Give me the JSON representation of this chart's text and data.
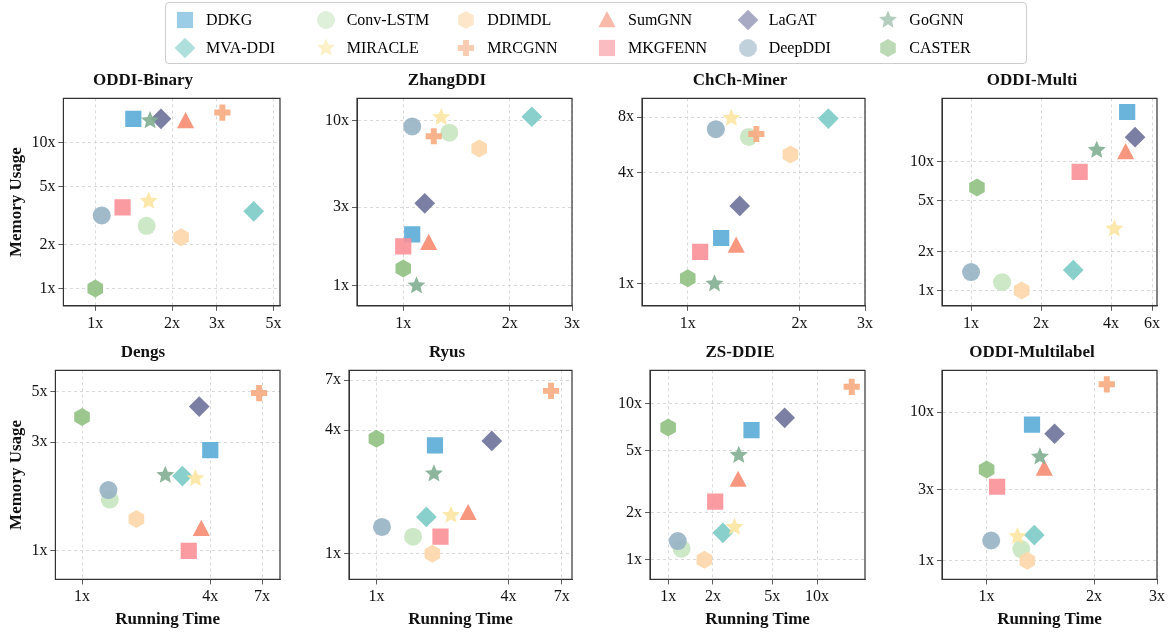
{
  "chart_data": [
    {
      "type": "scatter",
      "title": "ODDI-Binary",
      "ylabel": "Memory Usage",
      "log": "xy",
      "grid": true,
      "legend": "top",
      "xlim": [
        0.75,
        5.3
      ],
      "ylim": [
        0.76,
        20
      ],
      "xticks": [
        {
          "value": 1,
          "label": "1x"
        },
        {
          "value": 2,
          "label": "2x"
        },
        {
          "value": 3,
          "label": "3x"
        },
        {
          "value": 5,
          "label": "5x"
        }
      ],
      "yticks": [
        {
          "value": 1,
          "label": "1x"
        },
        {
          "value": 2,
          "label": "2x"
        },
        {
          "value": 5,
          "label": "5x"
        },
        {
          "value": 10,
          "label": "10x"
        }
      ],
      "series": [
        {
          "name": "DDKG",
          "color": "#5aabd6",
          "marker": "square",
          "x": [
            1.41
          ],
          "values": [
            14.5
          ]
        },
        {
          "name": "MVA-DDI",
          "color": "#7ccbc6",
          "marker": "diamond",
          "x": [
            4.18
          ],
          "values": [
            3.37
          ]
        },
        {
          "name": "Conv-LSTM",
          "color": "#c8e5c1",
          "marker": "circle",
          "x": [
            1.59
          ],
          "values": [
            2.68
          ]
        },
        {
          "name": "MIRACLE",
          "color": "#fde6a2",
          "marker": "star",
          "x": [
            1.62
          ],
          "values": [
            3.96
          ]
        },
        {
          "name": "DDIMDL",
          "color": "#fdd6a8",
          "x": [
            2.17
          ],
          "values": [
            2.24
          ]
        },
        {
          "name": "MRCGNN",
          "color": "#f7aa80",
          "marker": "cross",
          "x": [
            3.15
          ],
          "values": [
            16.0
          ]
        },
        {
          "name": "SumGNN",
          "color": "#f68c72",
          "marker": "triangle",
          "x": [
            2.26
          ],
          "values": [
            14.0
          ]
        },
        {
          "name": "MKGFENN",
          "color": "#f98f97",
          "marker": "square",
          "x": [
            1.28
          ],
          "values": [
            3.59
          ]
        },
        {
          "name": "LaGAT",
          "color": "#6d7199",
          "marker": "diamond",
          "x": [
            1.81
          ],
          "values": [
            14.5
          ]
        },
        {
          "name": "DeepDDI",
          "color": "#97b3c4",
          "marker": "circle",
          "x": [
            1.06
          ],
          "values": [
            3.16
          ]
        },
        {
          "name": "GoGNN",
          "color": "#82ae92",
          "marker": "star",
          "x": [
            1.64
          ],
          "values": [
            14.1
          ]
        },
        {
          "name": "CASTER",
          "color": "#90c183",
          "x": [
            1.0
          ],
          "values": [
            1.0
          ]
        }
      ]
    },
    {
      "type": "scatter",
      "title": "ZhangDDI",
      "log": "xy",
      "grid": true,
      "xlim": [
        0.74,
        3.0
      ],
      "ylim": [
        0.755,
        13.7
      ],
      "xticks": [
        {
          "value": 1,
          "label": "1x"
        },
        {
          "value": 2,
          "label": "2x"
        },
        {
          "value": 3,
          "label": "3x"
        }
      ],
      "yticks": [
        {
          "value": 1,
          "label": "1x"
        },
        {
          "value": 3,
          "label": "3x"
        },
        {
          "value": 10,
          "label": "10x"
        }
      ],
      "series": [
        {
          "color": "#5aabd6",
          "marker": "square",
          "x": [
            1.06
          ],
          "values": [
            2.05
          ]
        },
        {
          "color": "#7ccbc6",
          "marker": "diamond",
          "x": [
            2.31
          ],
          "values": [
            10.6
          ]
        },
        {
          "color": "#c8e5c1",
          "marker": "circle",
          "x": [
            1.35
          ],
          "values": [
            8.49
          ]
        },
        {
          "color": "#fde6a2",
          "marker": "star",
          "x": [
            1.28
          ],
          "values": [
            10.5
          ]
        },
        {
          "color": "#fdd6a8",
          "x": [
            1.64
          ],
          "values": [
            6.81
          ]
        },
        {
          "color": "#f7aa80",
          "marker": "cross",
          "x": [
            1.22
          ],
          "values": [
            8.07
          ]
        },
        {
          "color": "#f68c72",
          "marker": "triangle",
          "x": [
            1.18
          ],
          "values": [
            1.82
          ]
        },
        {
          "color": "#f98f97",
          "marker": "square",
          "x": [
            1.0
          ],
          "values": [
            1.73
          ]
        },
        {
          "color": "#6d7199",
          "marker": "diamond",
          "x": [
            1.15
          ],
          "values": [
            3.16
          ]
        },
        {
          "color": "#97b3c4",
          "marker": "circle",
          "x": [
            1.06
          ],
          "values": [
            9.26
          ]
        },
        {
          "color": "#82ae92",
          "marker": "star",
          "x": [
            1.09
          ],
          "values": [
            1.0
          ]
        },
        {
          "color": "#90c183",
          "x": [
            1.0
          ],
          "values": [
            1.27
          ]
        }
      ]
    },
    {
      "type": "scatter",
      "title": "ChCh-Miner",
      "log": "xy",
      "grid": true,
      "xlim": [
        0.753,
        3.0
      ],
      "ylim": [
        0.76,
        10.1
      ],
      "xticks": [
        {
          "value": 1,
          "label": "1x"
        },
        {
          "value": 2,
          "label": "2x"
        },
        {
          "value": 3,
          "label": "3x"
        }
      ],
      "yticks": [
        {
          "value": 1,
          "label": "1x"
        },
        {
          "value": 4,
          "label": "4x"
        },
        {
          "value": 8,
          "label": "8x"
        }
      ],
      "series": [
        {
          "color": "#5aabd6",
          "marker": "square",
          "x": [
            1.23
          ],
          "values": [
            1.77
          ]
        },
        {
          "color": "#7ccbc6",
          "marker": "diamond",
          "x": [
            2.39
          ],
          "values": [
            7.85
          ]
        },
        {
          "color": "#c8e5c1",
          "marker": "circle",
          "x": [
            1.46
          ],
          "values": [
            6.25
          ]
        },
        {
          "color": "#fde6a2",
          "marker": "star",
          "x": [
            1.31
          ],
          "values": [
            7.89
          ]
        },
        {
          "color": "#fdd6a8",
          "x": [
            1.89
          ],
          "values": [
            5.02
          ]
        },
        {
          "color": "#f7aa80",
          "marker": "cross",
          "x": [
            1.53
          ],
          "values": [
            6.48
          ]
        },
        {
          "color": "#f68c72",
          "marker": "triangle",
          "x": [
            1.35
          ],
          "values": [
            1.61
          ]
        },
        {
          "color": "#f98f97",
          "marker": "square",
          "x": [
            1.08
          ],
          "values": [
            1.49
          ]
        },
        {
          "color": "#6d7199",
          "marker": "diamond",
          "x": [
            1.38
          ],
          "values": [
            2.64
          ]
        },
        {
          "color": "#97b3c4",
          "marker": "circle",
          "x": [
            1.19
          ],
          "values": [
            6.88
          ]
        },
        {
          "color": "#82ae92",
          "marker": "star",
          "x": [
            1.18
          ],
          "values": [
            1.0
          ]
        },
        {
          "color": "#90c183",
          "x": [
            1.0
          ],
          "values": [
            1.07
          ]
        }
      ]
    },
    {
      "type": "scatter",
      "title": "ODDI-Multi",
      "log": "xy",
      "grid": true,
      "xlim": [
        0.75,
        6.3
      ],
      "ylim": [
        0.76,
        31
      ],
      "xticks": [
        {
          "value": 1,
          "label": "1x"
        },
        {
          "value": 2,
          "label": "2x"
        },
        {
          "value": 4,
          "label": "4x"
        },
        {
          "value": 6,
          "label": "6x"
        }
      ],
      "yticks": [
        {
          "value": 1,
          "label": "1x"
        },
        {
          "value": 2,
          "label": "2x"
        },
        {
          "value": 5,
          "label": "5x"
        },
        {
          "value": 10,
          "label": "10x"
        }
      ],
      "series": [
        {
          "color": "#5aabd6",
          "marker": "square",
          "x": [
            4.69
          ],
          "values": [
            24.3
          ]
        },
        {
          "color": "#7ccbc6",
          "marker": "diamond",
          "x": [
            2.75
          ],
          "values": [
            1.44
          ]
        },
        {
          "color": "#c8e5c1",
          "marker": "circle",
          "x": [
            1.36
          ],
          "values": [
            1.16
          ]
        },
        {
          "color": "#fde6a2",
          "marker": "star",
          "x": [
            4.13
          ],
          "values": [
            3.01
          ]
        },
        {
          "color": "#fdd6a8",
          "x": [
            1.65
          ],
          "values": [
            1.0
          ]
        },
        {
          "color": "#f68c72",
          "marker": "triangle",
          "x": [
            4.62
          ],
          "values": [
            11.9
          ]
        },
        {
          "color": "#f98f97",
          "marker": "square",
          "x": [
            2.93
          ],
          "values": [
            8.32
          ]
        },
        {
          "color": "#6d7199",
          "marker": "diamond",
          "x": [
            5.07
          ],
          "values": [
            15.5
          ]
        },
        {
          "color": "#97b3c4",
          "marker": "circle",
          "x": [
            1.0
          ],
          "values": [
            1.39
          ]
        },
        {
          "color": "#82ae92",
          "marker": "star",
          "x": [
            3.47
          ],
          "values": [
            12.3
          ]
        },
        {
          "color": "#90c183",
          "x": [
            1.06
          ],
          "values": [
            6.31
          ]
        }
      ]
    },
    {
      "type": "scatter",
      "title": "Dengs",
      "xlabel": "Running Time",
      "ylabel": "Memory Usage",
      "log": "xy",
      "grid": true,
      "xlim": [
        0.75,
        8.5
      ],
      "ylim": [
        0.75,
        6.2
      ],
      "xticks": [
        {
          "value": 1,
          "label": "1x"
        },
        {
          "value": 4,
          "label": "4x"
        },
        {
          "value": 7,
          "label": "7x"
        }
      ],
      "yticks": [
        {
          "value": 1,
          "label": "1x"
        },
        {
          "value": 3,
          "label": "3x"
        },
        {
          "value": 5,
          "label": "5x"
        }
      ],
      "series": [
        {
          "color": "#5aabd6",
          "marker": "square",
          "x": [
            4.0
          ],
          "values": [
            2.77
          ]
        },
        {
          "color": "#7ccbc6",
          "marker": "diamond",
          "x": [
            2.96
          ],
          "values": [
            2.13
          ]
        },
        {
          "color": "#c8e5c1",
          "marker": "circle",
          "x": [
            1.35
          ],
          "values": [
            1.68
          ]
        },
        {
          "color": "#fde6a2",
          "marker": "star",
          "x": [
            3.41
          ],
          "values": [
            2.08
          ]
        },
        {
          "color": "#fdd6a8",
          "x": [
            1.8
          ],
          "values": [
            1.38
          ]
        },
        {
          "color": "#f7aa80",
          "marker": "cross",
          "x": [
            6.78
          ],
          "values": [
            4.93
          ]
        },
        {
          "color": "#f68c72",
          "marker": "triangle",
          "x": [
            3.63
          ],
          "values": [
            1.25
          ]
        },
        {
          "color": "#f98f97",
          "marker": "square",
          "x": [
            3.17
          ],
          "values": [
            1.0
          ]
        },
        {
          "color": "#6d7199",
          "marker": "diamond",
          "x": [
            3.55
          ],
          "values": [
            4.3
          ]
        },
        {
          "color": "#97b3c4",
          "marker": "circle",
          "x": [
            1.33
          ],
          "values": [
            1.85
          ]
        },
        {
          "color": "#82ae92",
          "marker": "star",
          "x": [
            2.46
          ],
          "values": [
            2.15
          ]
        },
        {
          "color": "#90c183",
          "x": [
            1.0
          ],
          "values": [
            3.87
          ]
        }
      ]
    },
    {
      "type": "scatter",
      "title": "Ryus",
      "xlabel": "Running Time",
      "log": "xy",
      "grid": true,
      "xlim": [
        0.75,
        7.8
      ],
      "ylim": [
        0.75,
        7.8
      ],
      "xticks": [
        {
          "value": 1,
          "label": "1x"
        },
        {
          "value": 4,
          "label": "4x"
        },
        {
          "value": 7,
          "label": "7x"
        }
      ],
      "yticks": [
        {
          "value": 1,
          "label": "1x"
        },
        {
          "value": 4,
          "label": "4x"
        },
        {
          "value": 7,
          "label": "7x"
        }
      ],
      "series": [
        {
          "color": "#5aabd6",
          "marker": "square",
          "x": [
            1.85
          ],
          "values": [
            3.37
          ]
        },
        {
          "color": "#7ccbc6",
          "marker": "diamond",
          "x": [
            1.69
          ],
          "values": [
            1.51
          ]
        },
        {
          "color": "#c8e5c1",
          "marker": "circle",
          "x": [
            1.47
          ],
          "values": [
            1.21
          ]
        },
        {
          "color": "#fde6a2",
          "marker": "star",
          "x": [
            2.19
          ],
          "values": [
            1.54
          ]
        },
        {
          "color": "#fdd6a8",
          "x": [
            1.8
          ],
          "values": [
            1.0
          ]
        },
        {
          "color": "#f7aa80",
          "marker": "cross",
          "x": [
            6.26
          ],
          "values": [
            6.2
          ]
        },
        {
          "color": "#f68c72",
          "marker": "triangle",
          "x": [
            2.62
          ],
          "values": [
            1.58
          ]
        },
        {
          "color": "#f98f97",
          "marker": "square",
          "x": [
            1.96
          ],
          "values": [
            1.21
          ]
        },
        {
          "color": "#6d7199",
          "marker": "diamond",
          "x": [
            3.36
          ],
          "values": [
            3.54
          ]
        },
        {
          "color": "#97b3c4",
          "marker": "circle",
          "x": [
            1.06
          ],
          "values": [
            1.35
          ]
        },
        {
          "color": "#82ae92",
          "marker": "star",
          "x": [
            1.83
          ],
          "values": [
            2.45
          ]
        },
        {
          "color": "#90c183",
          "x": [
            1.0
          ],
          "values": [
            3.63
          ]
        }
      ]
    },
    {
      "type": "scatter",
      "title": "ZS-DDIE",
      "xlabel": "Running Time",
      "log": "xy",
      "grid": true,
      "xlim": [
        0.755,
        21
      ],
      "ylim": [
        0.75,
        16.3
      ],
      "xticks": [
        {
          "value": 1,
          "label": "1x"
        },
        {
          "value": 2,
          "label": "2x"
        },
        {
          "value": 5,
          "label": "5x"
        },
        {
          "value": 10,
          "label": "10x"
        }
      ],
      "yticks": [
        {
          "value": 1,
          "label": "1x"
        },
        {
          "value": 2,
          "label": "2x"
        },
        {
          "value": 5,
          "label": "5x"
        },
        {
          "value": 10,
          "label": "10x"
        }
      ],
      "series": [
        {
          "color": "#5aabd6",
          "marker": "square",
          "x": [
            3.63
          ],
          "values": [
            6.76
          ]
        },
        {
          "color": "#7ccbc6",
          "marker": "diamond",
          "x": [
            2.33
          ],
          "values": [
            1.49
          ]
        },
        {
          "color": "#c8e5c1",
          "marker": "circle",
          "x": [
            1.23
          ],
          "values": [
            1.18
          ]
        },
        {
          "color": "#fde6a2",
          "marker": "star",
          "x": [
            2.79
          ],
          "values": [
            1.62
          ]
        },
        {
          "color": "#fdd6a8",
          "x": [
            1.75
          ],
          "values": [
            1.0
          ]
        },
        {
          "color": "#f7aa80",
          "marker": "cross",
          "x": [
            17.1
          ],
          "values": [
            12.8
          ]
        },
        {
          "color": "#f68c72",
          "marker": "triangle",
          "x": [
            2.95
          ],
          "values": [
            3.26
          ]
        },
        {
          "color": "#f98f97",
          "marker": "square",
          "x": [
            2.07
          ],
          "values": [
            2.36
          ]
        },
        {
          "color": "#6d7199",
          "marker": "diamond",
          "x": [
            6.06
          ],
          "values": [
            8.11
          ]
        },
        {
          "color": "#97b3c4",
          "marker": "circle",
          "x": [
            1.16
          ],
          "values": [
            1.32
          ]
        },
        {
          "color": "#82ae92",
          "marker": "star",
          "x": [
            2.98
          ],
          "values": [
            4.67
          ]
        },
        {
          "color": "#90c183",
          "x": [
            1.0
          ],
          "values": [
            7.02
          ]
        }
      ]
    },
    {
      "type": "scatter",
      "title": "ODDI-Multilabel",
      "xlabel": "Running Time",
      "log": "xy",
      "grid": true,
      "xlim": [
        0.75,
        3.0
      ],
      "ylim": [
        0.75,
        19.1
      ],
      "xticks": [
        {
          "value": 1,
          "label": "1x"
        },
        {
          "value": 2,
          "label": "2x"
        },
        {
          "value": 3,
          "label": "3x"
        }
      ],
      "yticks": [
        {
          "value": 1,
          "label": "1x"
        },
        {
          "value": 3,
          "label": "3x"
        },
        {
          "value": 10,
          "label": "10x"
        }
      ],
      "series": [
        {
          "color": "#5aabd6",
          "marker": "square",
          "x": [
            1.34
          ],
          "values": [
            8.25
          ]
        },
        {
          "color": "#7ccbc6",
          "marker": "diamond",
          "x": [
            1.36
          ],
          "values": [
            1.49
          ]
        },
        {
          "color": "#c8e5c1",
          "marker": "circle",
          "x": [
            1.25
          ],
          "values": [
            1.2
          ]
        },
        {
          "color": "#fde6a2",
          "marker": "star",
          "x": [
            1.22
          ],
          "values": [
            1.46
          ]
        },
        {
          "color": "#fdd6a8",
          "x": [
            1.3
          ],
          "values": [
            1.0
          ]
        },
        {
          "color": "#f7aa80",
          "marker": "cross",
          "x": [
            2.17
          ],
          "values": [
            15.4
          ]
        },
        {
          "color": "#f68c72",
          "marker": "triangle",
          "x": [
            1.45
          ],
          "values": [
            4.18
          ]
        },
        {
          "color": "#f98f97",
          "marker": "square",
          "x": [
            1.07
          ],
          "values": [
            3.15
          ]
        },
        {
          "color": "#6d7199",
          "marker": "diamond",
          "x": [
            1.55
          ],
          "values": [
            7.16
          ]
        },
        {
          "color": "#97b3c4",
          "marker": "circle",
          "x": [
            1.03
          ],
          "values": [
            1.37
          ]
        },
        {
          "color": "#82ae92",
          "marker": "star",
          "x": [
            1.41
          ],
          "values": [
            5.01
          ]
        },
        {
          "color": "#90c183",
          "x": [
            1.0
          ],
          "values": [
            4.11
          ]
        }
      ]
    }
  ]
}
